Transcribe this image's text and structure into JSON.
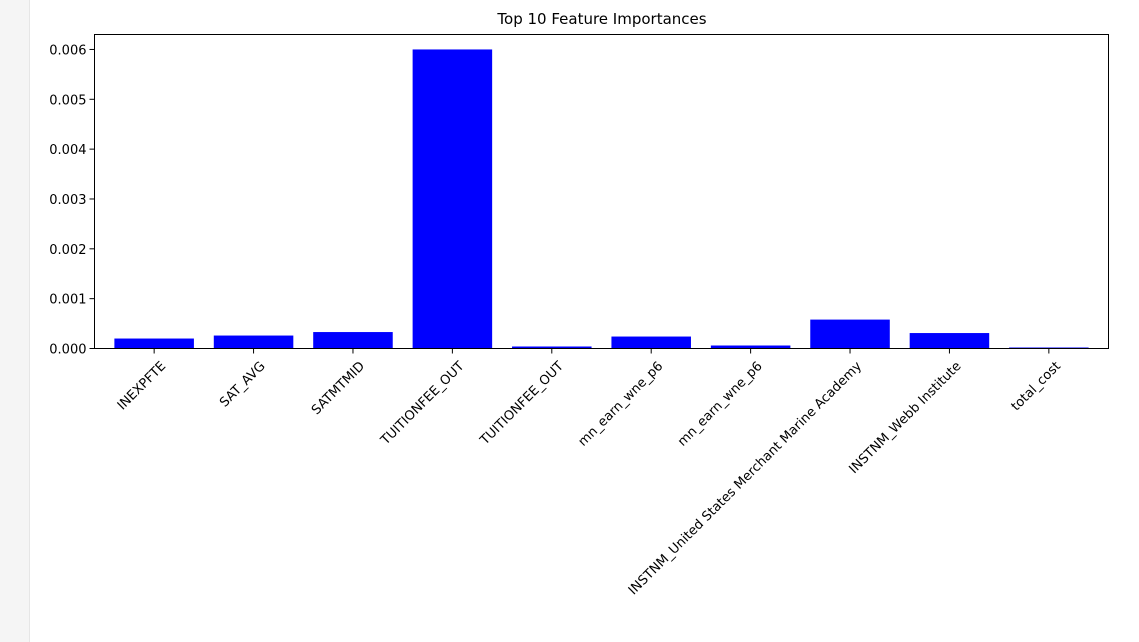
{
  "chart_data": {
    "type": "bar",
    "title": "Top 10 Feature Importances",
    "xlabel": "",
    "ylabel": "",
    "categories": [
      "INEXPFTE",
      "SAT_AVG",
      "SATMTMID",
      "TUITIONFEE_OUT",
      "TUITIONFEE_OUT",
      "mn_earn_wne_p6",
      "mn_earn_wne_p6",
      "INSTNM_United States Merchant Marine Academy",
      "INSTNM_Webb Institute",
      "total_cost"
    ],
    "values": [
      0.0002,
      0.00026,
      0.00033,
      0.006,
      4e-05,
      0.00024,
      6e-05,
      0.00058,
      0.00031,
      2e-05
    ],
    "ylim": [
      0,
      0.0063
    ],
    "yticks": [
      "0.000",
      "0.001",
      "0.002",
      "0.003",
      "0.004",
      "0.005",
      "0.006"
    ],
    "ytick_values": [
      0,
      0.001,
      0.002,
      0.003,
      0.004,
      0.005,
      0.006
    ],
    "grid": false,
    "bar_color": "#0000ff"
  }
}
